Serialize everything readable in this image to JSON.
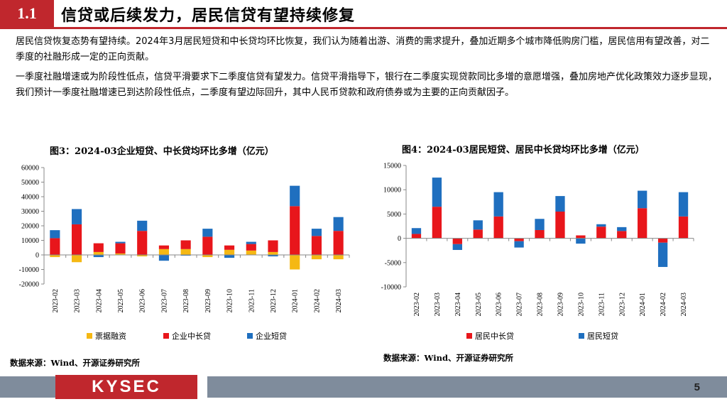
{
  "header": {
    "section_number": "1.1",
    "title": "信贷或后续发力，居民信贷有望持续修复"
  },
  "paragraphs": [
    "居民信贷恢复态势有望持续。2024年3月居民短贷和中长贷均环比恢复，我们认为随着出游、消费的需求提升，叠加近期多个城市降低购房门槛，居民信用有望改善，对二季度的社融形成一定的正向贡献。",
    "一季度社融增速或为阶段性低点，信贷平滑要求下二季度信贷有望发力。信贷平滑指导下，银行在二季度实现贷款同比多增的意愿增强，叠加房地产优化政策效力逐步显现，我们预计一季度社融增速已到达阶段性低点，二季度有望边际回升，其中人民币贷款和政府债券或为主要的正向贡献因子。"
  ],
  "chart_data": [
    {
      "type": "bar",
      "stacked": true,
      "title": "图3：2024-03企业短贷、中长贷均环比多增（亿元）",
      "categories": [
        "2023-02",
        "2023-03",
        "2023-04",
        "2023-05",
        "2023-06",
        "2023-07",
        "2023-08",
        "2023-09",
        "2023-10",
        "2023-11",
        "2023-12",
        "2024-01",
        "2024-02",
        "2024-03"
      ],
      "series": [
        {
          "name": "票据融资",
          "color": "#F5B813",
          "values": [
            -1500,
            -5000,
            2000,
            1000,
            -1000,
            4000,
            4000,
            -1500,
            3500,
            3000,
            2000,
            -10000,
            -3000,
            -3000
          ]
        },
        {
          "name": "企业中长贷",
          "color": "#E8161B",
          "values": [
            11500,
            21000,
            6000,
            7000,
            16500,
            2500,
            6000,
            12500,
            3000,
            4500,
            8000,
            33500,
            13000,
            16500
          ]
        },
        {
          "name": "企业短贷",
          "color": "#1F6FBF",
          "values": [
            5500,
            10500,
            -1500,
            1000,
            7000,
            -4000,
            -500,
            5500,
            -2000,
            1500,
            -1000,
            14000,
            5000,
            9500
          ]
        }
      ],
      "ylim": [
        -20000,
        60000
      ],
      "yticks": [
        "60000",
        "50000",
        "40000",
        "30000",
        "20000",
        "10000",
        "0",
        "-10000",
        "-20000"
      ],
      "xlabel": "",
      "ylabel": "",
      "legend": "bottom"
    },
    {
      "type": "bar",
      "stacked": true,
      "title": "图4：2024-03居民短贷、居民中长贷均环比多增（亿元）",
      "categories": [
        "2023-02",
        "2023-03",
        "2023-04",
        "2023-05",
        "2023-06",
        "2023-07",
        "2023-08",
        "2023-09",
        "2023-10",
        "2023-11",
        "2023-12",
        "2024-01",
        "2024-02",
        "2024-03"
      ],
      "series": [
        {
          "name": "居民中长贷",
          "color": "#E8161B",
          "values": [
            900,
            6500,
            -1200,
            1800,
            4500,
            -600,
            1700,
            5500,
            600,
            2400,
            1500,
            6200,
            -900,
            4500
          ]
        },
        {
          "name": "居民短贷",
          "color": "#1F6FBF",
          "values": [
            1200,
            6000,
            -1200,
            1900,
            5000,
            -1300,
            2300,
            3200,
            -1100,
            500,
            800,
            3600,
            -5000,
            5000
          ]
        }
      ],
      "ylim": [
        -10000,
        15000
      ],
      "yticks": [
        "15000",
        "10000",
        "5000",
        "0",
        "-5000",
        "-10000"
      ],
      "xlabel": "",
      "ylabel": "",
      "legend": "bottom"
    }
  ],
  "sources": {
    "left": "数据来源：Wind、开源证券研究所",
    "right": "数据来源：Wind、开源证券研究所"
  },
  "footer": {
    "logo_text": "KYSEC",
    "page_number": "5"
  },
  "colors": {
    "brand_red": "#C0272D",
    "footer_gray": "#7F8C9C"
  }
}
